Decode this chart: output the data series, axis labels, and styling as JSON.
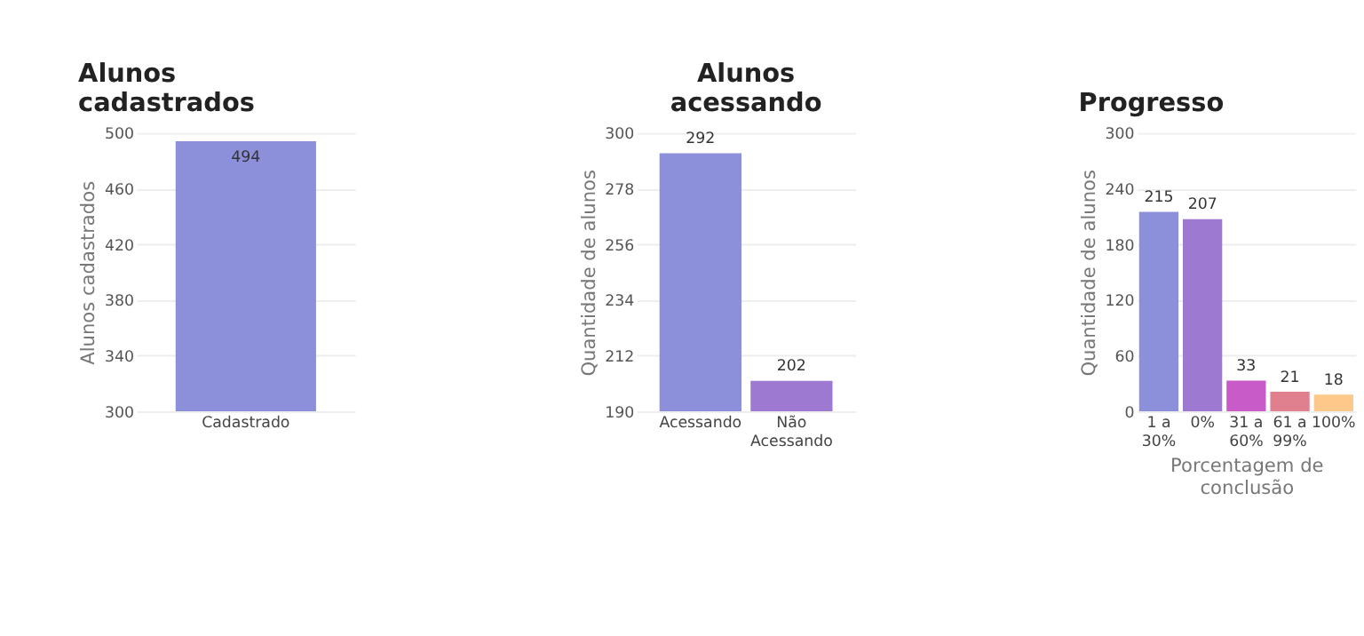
{
  "chart_data": [
    {
      "type": "bar",
      "title": "Alunos cadastrados",
      "ylabel": "Alunos cadastrados",
      "categories": [
        "Cadastrado"
      ],
      "values": [
        494
      ],
      "colors": [
        "#8c8fd9"
      ],
      "ylim": [
        300,
        500
      ],
      "yticks": [
        300,
        340,
        380,
        420,
        460,
        500
      ],
      "grid": "y",
      "data_labels": true
    },
    {
      "type": "bar",
      "title": "Alunos acessando",
      "ylabel": "Quantidade de alunos",
      "categories": [
        "Acessando",
        "Não Acessando"
      ],
      "values": [
        292,
        202
      ],
      "colors": [
        "#8c8fd9",
        "#9e79d1"
      ],
      "ylim": [
        190,
        300
      ],
      "yticks": [
        190,
        212,
        234,
        256,
        278,
        300
      ],
      "grid": "y",
      "data_labels": true
    },
    {
      "type": "bar",
      "title": "Progresso",
      "ylabel": "Quantidade de alunos",
      "xlabel": "Porcentagem de conclusão",
      "categories": [
        "1 a 30%",
        "0%",
        "31 a 60%",
        "61 a 99%",
        "100%"
      ],
      "values": [
        215,
        207,
        33,
        21,
        18
      ],
      "colors": [
        "#8c8fd9",
        "#9e79d1",
        "#c95bc9",
        "#e0808f",
        "#fcc98a"
      ],
      "ylim": [
        0,
        300
      ],
      "yticks": [
        0,
        60,
        120,
        180,
        240,
        300
      ],
      "grid": "y",
      "data_labels": true
    }
  ]
}
